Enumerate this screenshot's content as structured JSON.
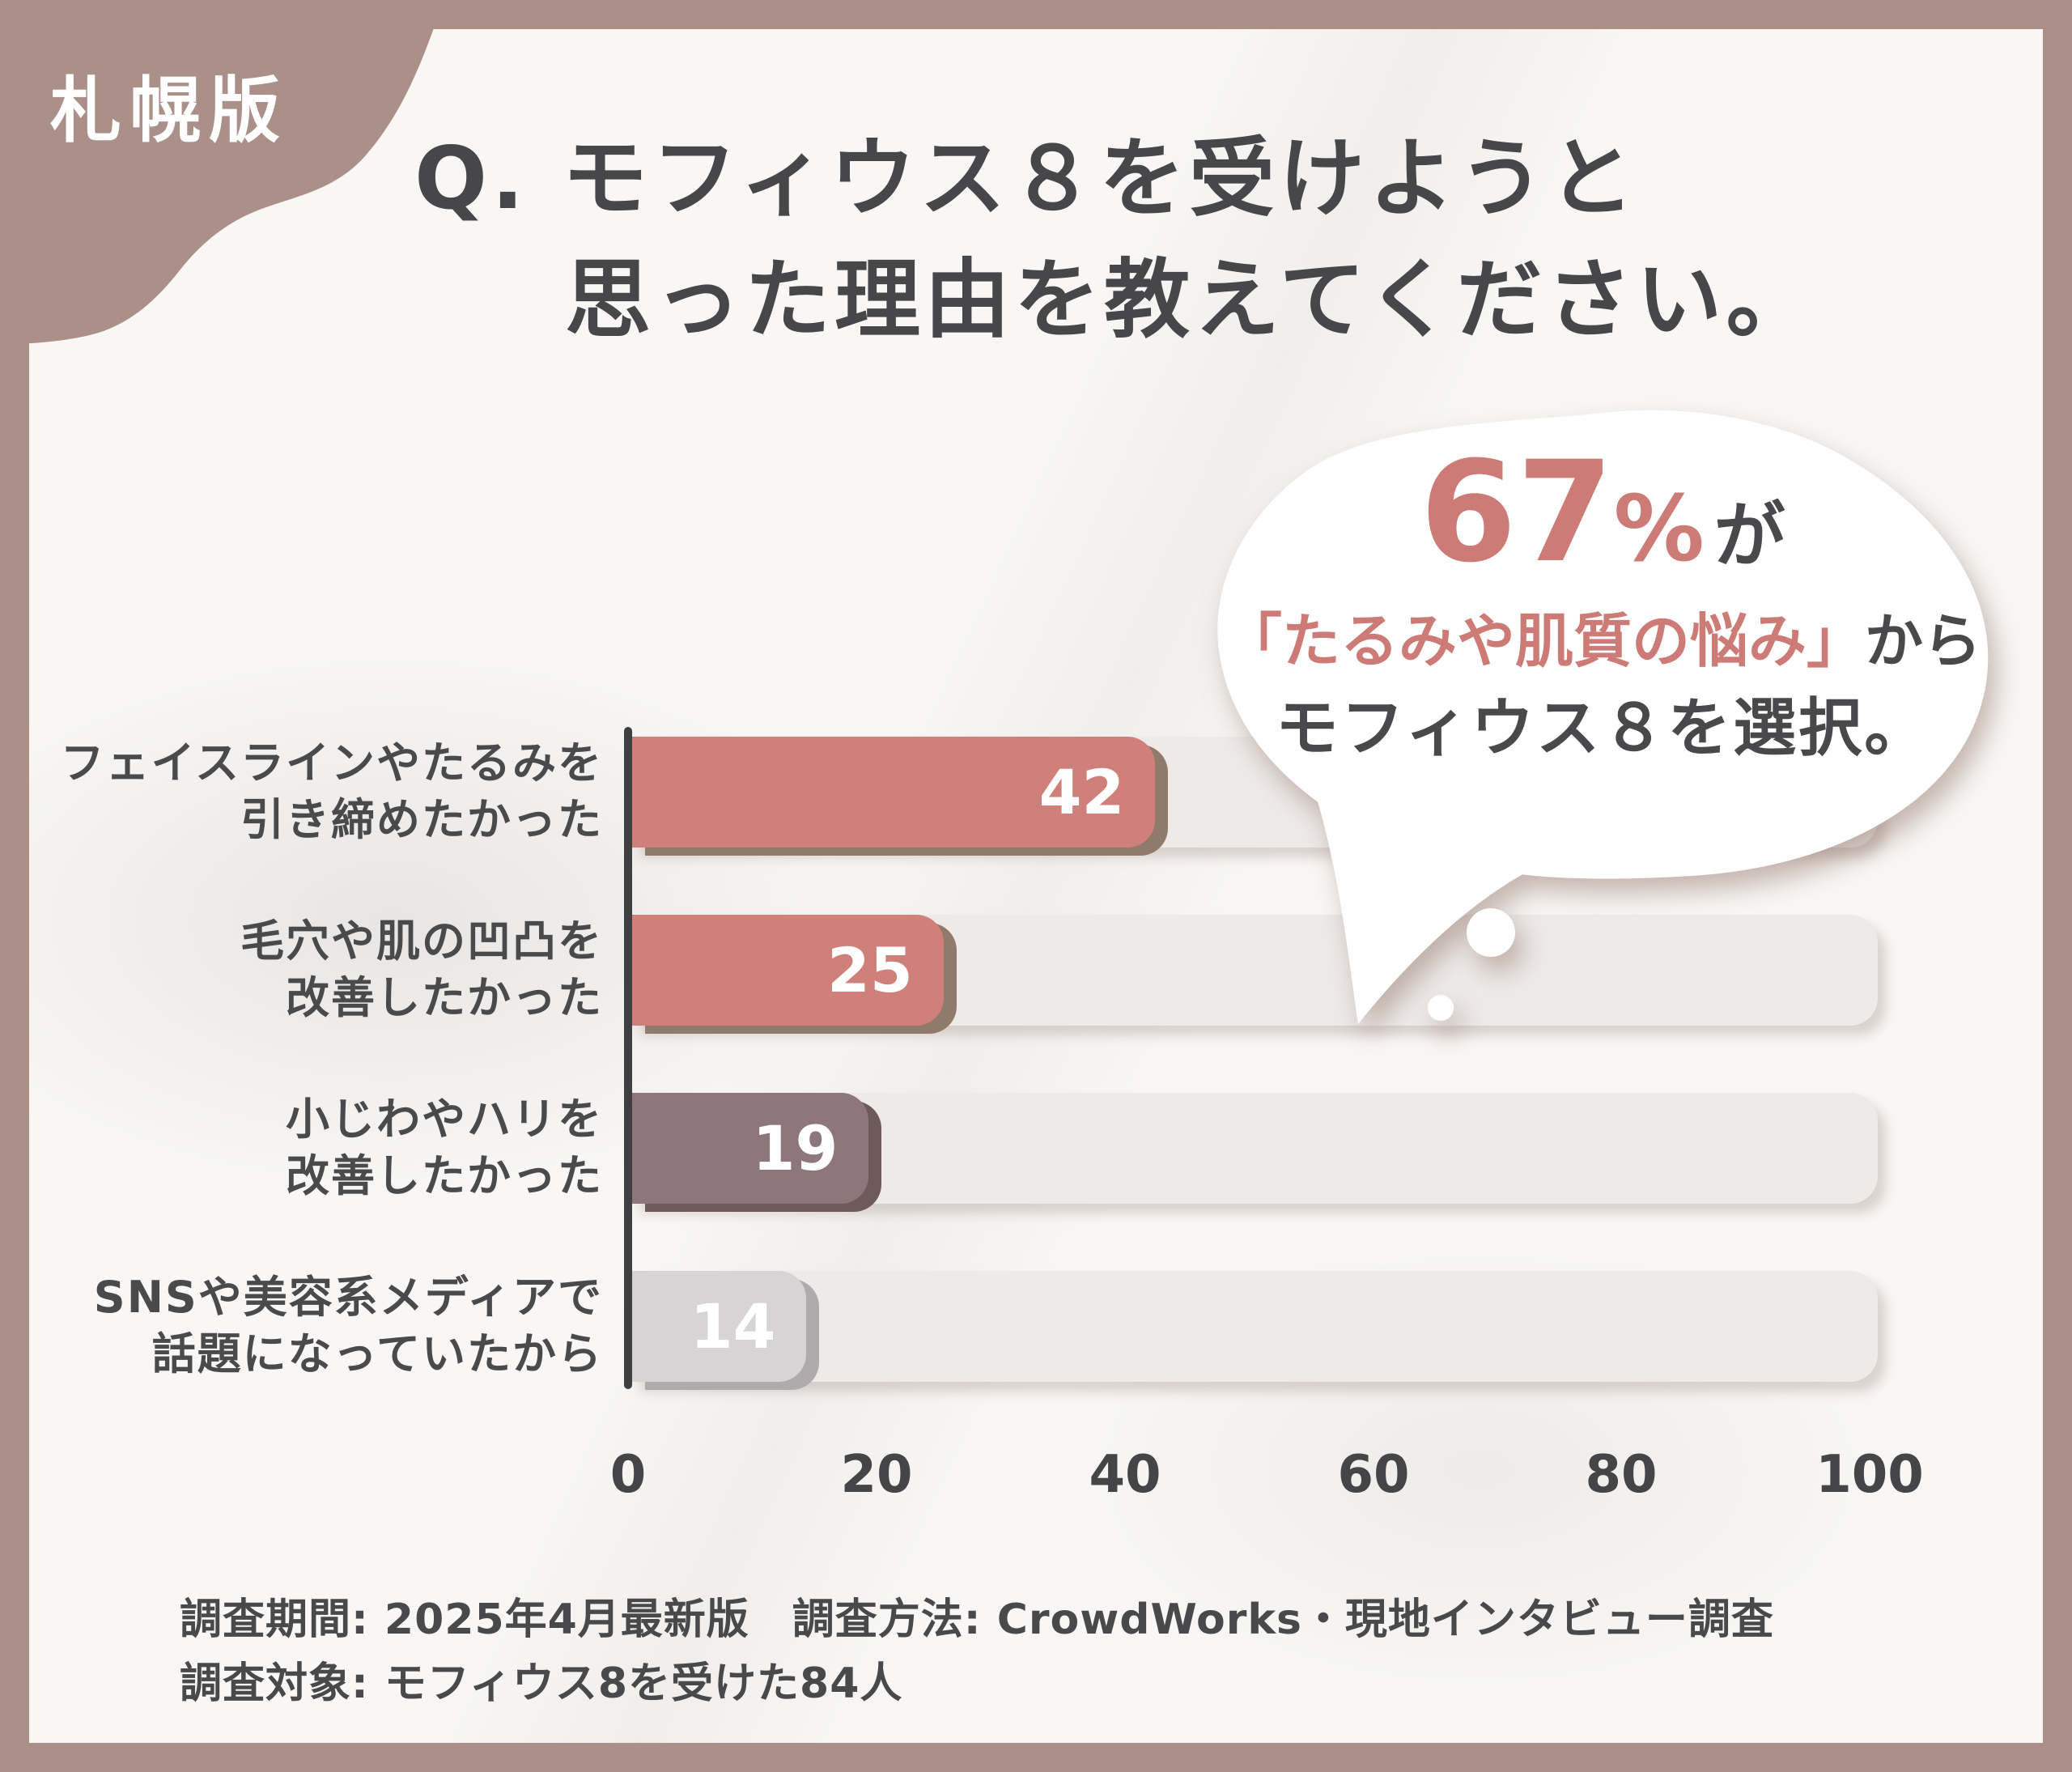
{
  "page": {
    "badge": "札幌版"
  },
  "title": {
    "line1": "Q. モフィウス８を受けようと",
    "line2": "思った理由を教えてください。"
  },
  "bubble": {
    "percent": "67",
    "percent_sign": "%",
    "suffix1": "が",
    "highlight": "「たるみや肌質の悩み」",
    "suffix2": "から",
    "line3": "モフィウス８を選択。"
  },
  "chart_data": {
    "type": "bar",
    "orientation": "horizontal",
    "title": "Q. モフィウス８を受けようと思った理由を教えてください。",
    "xlabel": "",
    "ylabel": "",
    "xlim": [
      0,
      100
    ],
    "xticks": [
      "0",
      "20",
      "40",
      "60",
      "80",
      "100"
    ],
    "grid": false,
    "legend": "none",
    "annotation": "67%が「たるみや肌質の悩み」からモフィウス８を選択。",
    "rows": [
      {
        "category": "フェイスラインやたるみを引き締めたかった",
        "label_lines": [
          "フェイスラインやたるみを",
          "引き締めたかった"
        ],
        "value": 42,
        "color": "#d0807b"
      },
      {
        "category": "毛穴や肌の凹凸を改善したかった",
        "label_lines": [
          "毛穴や肌の凹凸を",
          "改善したかった"
        ],
        "value": 25,
        "color": "#d0807b"
      },
      {
        "category": "小じわやハリを改善したかった",
        "label_lines": [
          "小じわやハリを",
          "改善したかった"
        ],
        "value": 19,
        "color": "#8d777a"
      },
      {
        "category": "SNSや美容系メディアで話題になっていたから",
        "label_lines": [
          "SNSや美容系メディアで",
          "話題になっていたから"
        ],
        "value": 14,
        "color": "#d6d4d5"
      }
    ]
  },
  "footer": {
    "line1": "調査期間: 2025年4月最新版　調査方法: CrowdWorks・現地インタビュー調査",
    "line2": "調査対象: モフィウス8を受けた84人"
  },
  "colors": {
    "frame": "#aa9088",
    "card_bg": "#f8f7f5",
    "accent_salmon": "#d0807b",
    "accent_mauve": "#8d777a",
    "accent_gray": "#d6d4d5",
    "track": "#edeae8",
    "axis": "#3f3f42",
    "text_dark": "#49494b",
    "bubble_bg": "#ffffff"
  }
}
